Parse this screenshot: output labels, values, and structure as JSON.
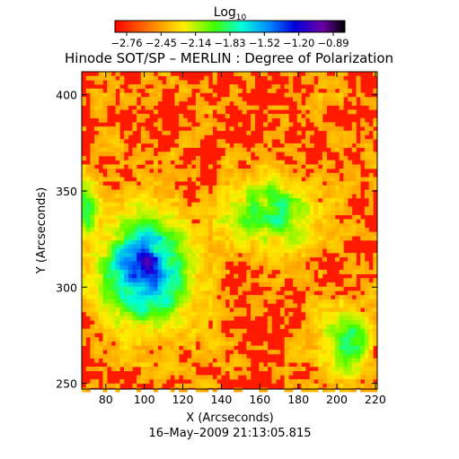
{
  "chart_data": {
    "type": "heatmap",
    "title": "Hinode SOT/SP – MERLIN : Degree of Polarization",
    "xlabel": "X (Arcseconds)",
    "ylabel": "Y (Arcseconds)",
    "timestamp": "16–May–2009 21:13:05.815",
    "xlim": [
      67.5,
      221
    ],
    "ylim": [
      247,
      412
    ],
    "xticks": [
      80,
      100,
      120,
      140,
      160,
      180,
      200,
      220
    ],
    "yticks": [
      250,
      300,
      350,
      400
    ],
    "colorbar": {
      "label_prefix": "Log",
      "label_subscript": "10",
      "ticks": [
        "−2.76",
        "−2.45",
        "−2.14",
        "−1.83",
        "−1.52",
        "−1.20",
        "−0.89"
      ],
      "range": [
        -2.76,
        -0.89
      ],
      "colormap": "rainbow (red → yellow → green → cyan → blue → violet → black)"
    },
    "map_features": [
      {
        "x": [
          72,
          130
        ],
        "y": [
          270,
          345
        ],
        "level": "high",
        "description": "large blue region at left-center"
      },
      {
        "x": [
          98,
          108
        ],
        "y": [
          308,
          318
        ],
        "level": "max",
        "description": "darkest violet core"
      },
      {
        "x": [
          140,
          190
        ],
        "y": [
          315,
          365
        ],
        "level": "high",
        "description": "blue/green network center-right"
      },
      {
        "x": [
          195,
          221
        ],
        "y": [
          250,
          290
        ],
        "level": "medium",
        "description": "blue/cyan patches bottom-right"
      },
      {
        "x": [
          67,
          221
        ],
        "y": [
          247,
          412
        ],
        "level": "low",
        "description": "red background elsewhere"
      }
    ]
  }
}
